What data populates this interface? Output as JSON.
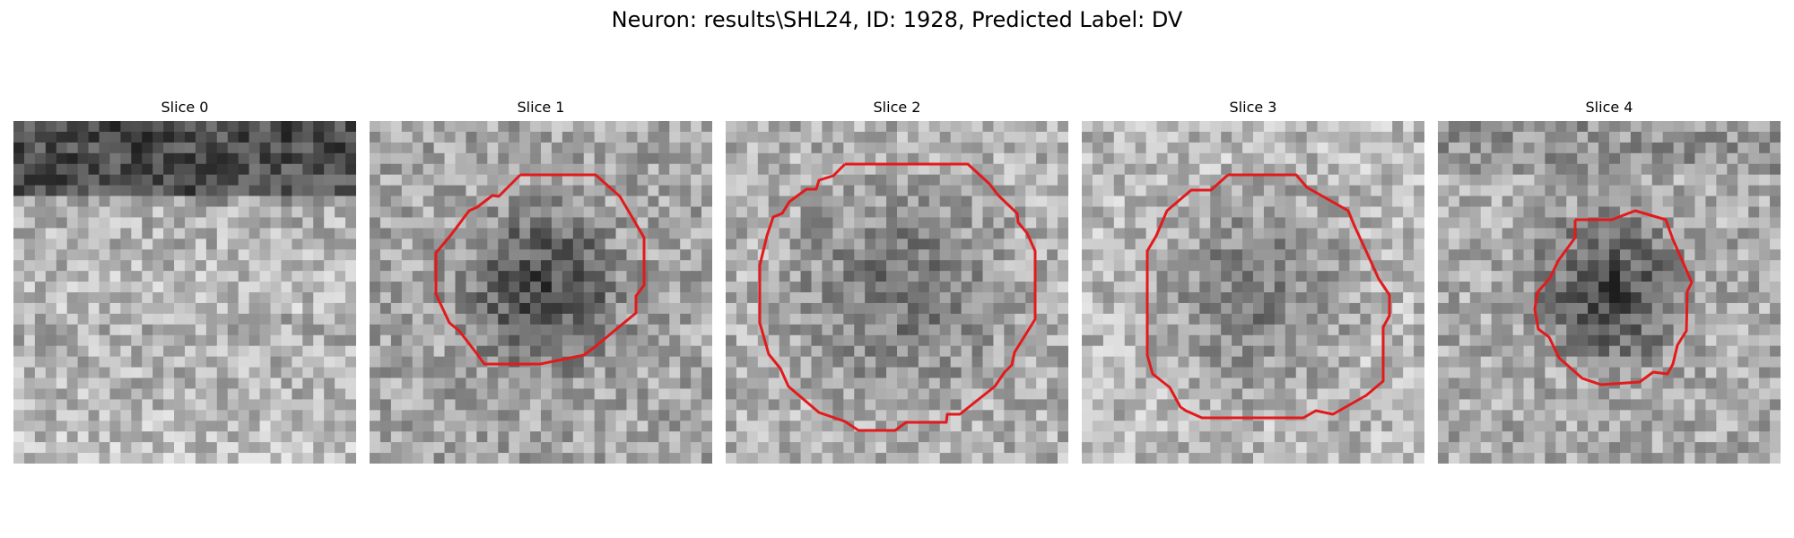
{
  "figure": {
    "title": "Neuron: results\\SHL24, ID: 1928, Predicted Label: DV",
    "panels": [
      {
        "title": "Slice 0",
        "tone": "mixed-top-dark",
        "contour": false
      },
      {
        "title": "Slice 1",
        "tone": "dark-center",
        "contour": true
      },
      {
        "title": "Slice 2",
        "tone": "mid-center",
        "contour": true
      },
      {
        "title": "Slice 3",
        "tone": "mid-center",
        "contour": true
      },
      {
        "title": "Slice 4",
        "tone": "very-dark-center",
        "contour": true
      }
    ],
    "colors": {
      "background": "#ffffff",
      "contour": "#e31a1c",
      "text": "#000000"
    }
  }
}
